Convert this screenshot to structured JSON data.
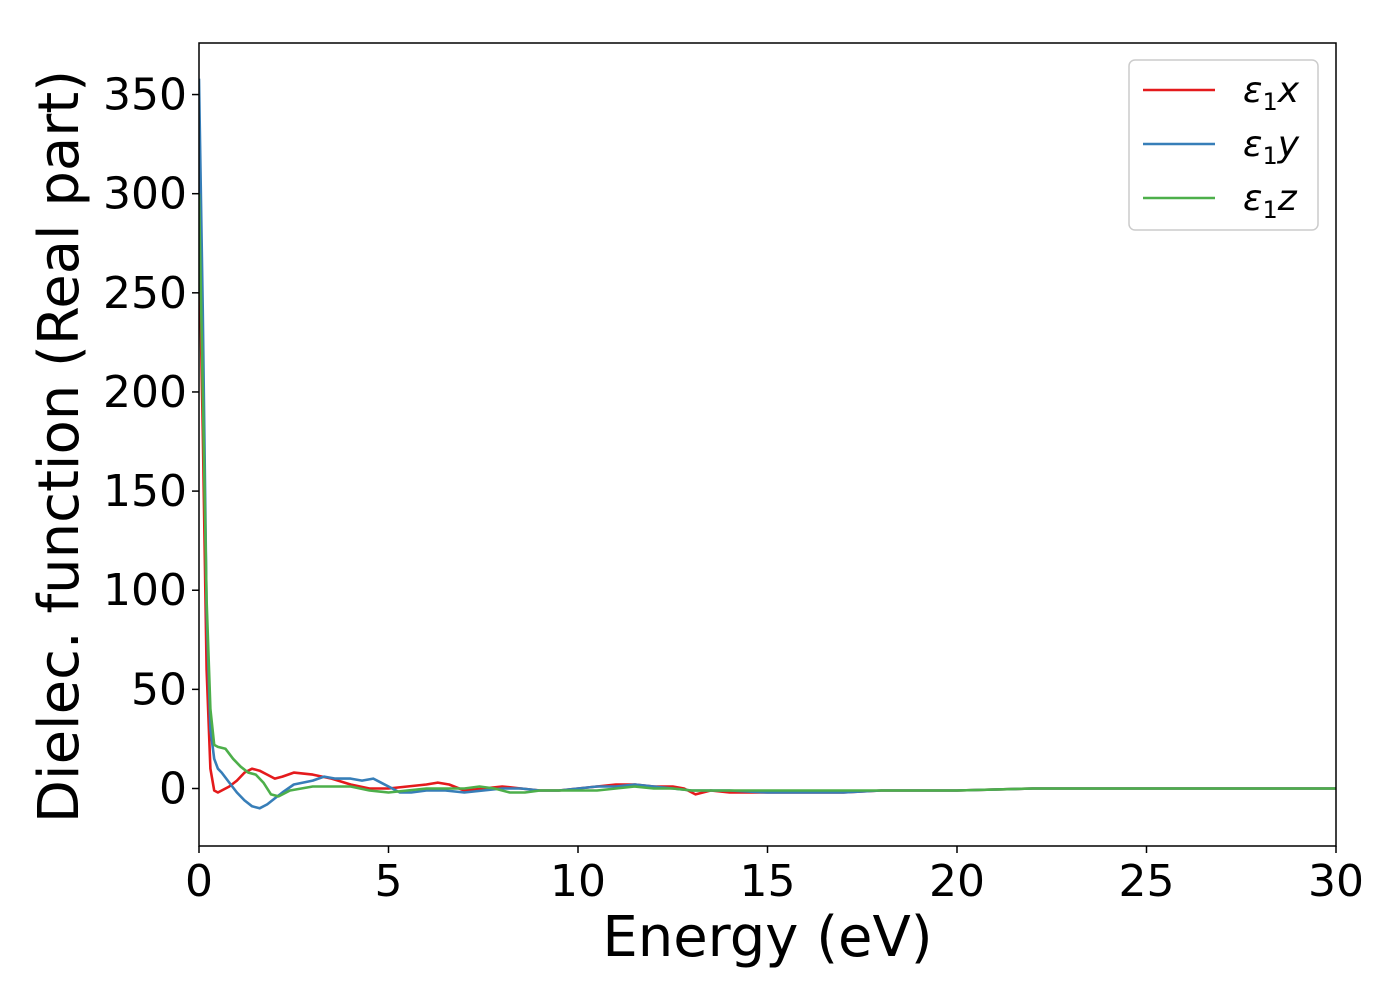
{
  "chart_data": {
    "type": "line",
    "title": "",
    "xlabel": "Energy (eV)",
    "ylabel": "Dielec. function (Real part)",
    "xlim": [
      0,
      30
    ],
    "ylim": [
      -29,
      376
    ],
    "xticks": [
      0,
      5,
      10,
      15,
      20,
      25,
      30
    ],
    "yticks": [
      0,
      50,
      100,
      150,
      200,
      250,
      300,
      350
    ],
    "grid": false,
    "legend_position": "top-right",
    "series": [
      {
        "name": "ε1x",
        "legend": {
          "base": "ε",
          "sub": "1",
          "tail": "x"
        },
        "color": "#e41a1c",
        "x": [
          0.0,
          0.1,
          0.2,
          0.3,
          0.4,
          0.5,
          0.6,
          0.8,
          1.0,
          1.2,
          1.4,
          1.6,
          1.8,
          2.0,
          2.2,
          2.5,
          3.0,
          3.5,
          4.0,
          4.5,
          5.0,
          5.5,
          6.0,
          6.3,
          6.6,
          7.0,
          7.5,
          8.0,
          8.5,
          9.0,
          9.5,
          10.0,
          10.5,
          11.0,
          11.5,
          12.0,
          12.5,
          12.8,
          13.1,
          13.5,
          14.0,
          15.0,
          16.0,
          17.0,
          18.0,
          20.0,
          22.0,
          25.0,
          28.0,
          30.0
        ],
        "y": [
          280,
          180,
          60,
          10,
          -1,
          -2,
          -1,
          1,
          4,
          8,
          10,
          9,
          7,
          5,
          6,
          8,
          7,
          5,
          2,
          0,
          0,
          1,
          2,
          3,
          2,
          -1,
          0,
          1,
          0,
          -1,
          -1,
          0,
          1,
          2,
          2,
          1,
          1,
          0,
          -3,
          -1,
          -2,
          -2,
          -2,
          -2,
          -1,
          -1,
          0,
          0,
          0,
          0
        ]
      },
      {
        "name": "ε1y",
        "legend": {
          "base": "ε",
          "sub": "1",
          "tail": "y"
        },
        "color": "#377eb8",
        "x": [
          0.0,
          0.1,
          0.2,
          0.3,
          0.4,
          0.5,
          0.6,
          0.8,
          1.0,
          1.2,
          1.4,
          1.6,
          1.8,
          2.0,
          2.2,
          2.5,
          3.0,
          3.3,
          3.6,
          4.0,
          4.3,
          4.6,
          5.0,
          5.3,
          5.6,
          6.0,
          6.5,
          7.0,
          7.5,
          8.0,
          8.5,
          9.0,
          9.5,
          10.0,
          10.5,
          11.0,
          11.5,
          12.0,
          12.5,
          13.0,
          14.0,
          15.0,
          16.0,
          17.0,
          18.0,
          20.0,
          22.0,
          25.0,
          28.0,
          30.0
        ],
        "y": [
          358,
          240,
          90,
          30,
          15,
          10,
          8,
          3,
          -2,
          -6,
          -9,
          -10,
          -8,
          -5,
          -2,
          2,
          4,
          6,
          5,
          5,
          4,
          5,
          1,
          -2,
          -2,
          -1,
          -1,
          -2,
          -1,
          0,
          0,
          -1,
          -1,
          0,
          1,
          1,
          2,
          1,
          0,
          -1,
          -1,
          -2,
          -2,
          -2,
          -1,
          -1,
          0,
          0,
          0,
          0
        ]
      },
      {
        "name": "ε1z",
        "legend": {
          "base": "ε",
          "sub": "1",
          "tail": "z"
        },
        "color": "#4daf4a",
        "x": [
          0.0,
          0.1,
          0.2,
          0.3,
          0.4,
          0.5,
          0.7,
          0.9,
          1.1,
          1.3,
          1.5,
          1.7,
          1.9,
          2.1,
          2.4,
          3.0,
          3.5,
          4.0,
          4.5,
          5.0,
          5.5,
          6.0,
          6.5,
          7.0,
          7.4,
          7.8,
          8.2,
          8.6,
          9.0,
          9.5,
          10.0,
          10.5,
          11.0,
          11.5,
          12.0,
          12.5,
          13.0,
          14.0,
          15.0,
          16.0,
          17.0,
          18.0,
          20.0,
          22.0,
          25.0,
          28.0,
          30.0
        ],
        "y": [
          300,
          200,
          95,
          40,
          22,
          21,
          20,
          15,
          11,
          8,
          7,
          3,
          -3,
          -4,
          -1,
          1,
          1,
          1,
          -1,
          -2,
          -1,
          0,
          0,
          0,
          1,
          0,
          -2,
          -2,
          -1,
          -1,
          -1,
          -1,
          0,
          1,
          0,
          0,
          -1,
          -1,
          -1,
          -1,
          -1,
          -1,
          -1,
          0,
          0,
          0,
          0
        ]
      }
    ]
  }
}
